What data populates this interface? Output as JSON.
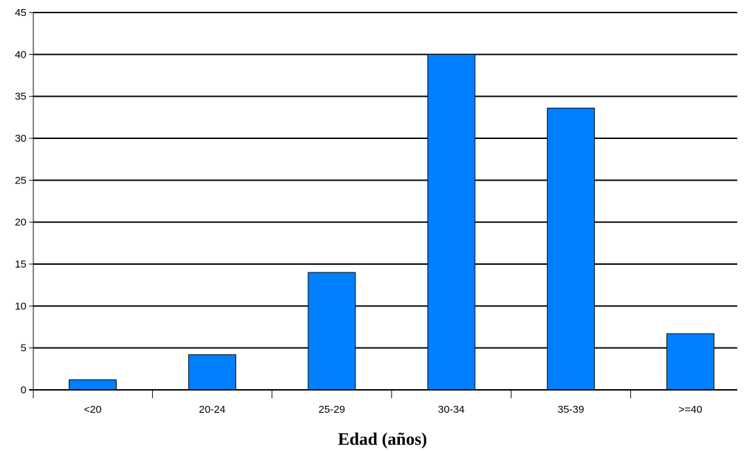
{
  "chart_data": {
    "type": "bar",
    "title": "",
    "xlabel": "Edad (años)",
    "ylabel": "",
    "categories": [
      "<20",
      "20-24",
      "25-29",
      "30-34",
      "35-39",
      ">=40"
    ],
    "values": [
      1.2,
      4.2,
      14.0,
      40.0,
      33.6,
      6.7
    ],
    "ylim": [
      0,
      45
    ],
    "yticks": [
      "0",
      "5",
      "10",
      "15",
      "20",
      "25",
      "30",
      "35",
      "40",
      "45"
    ],
    "grid": true,
    "legend": "none",
    "bar_color": "#0080ff",
    "bar_edge_color": "#000000"
  }
}
